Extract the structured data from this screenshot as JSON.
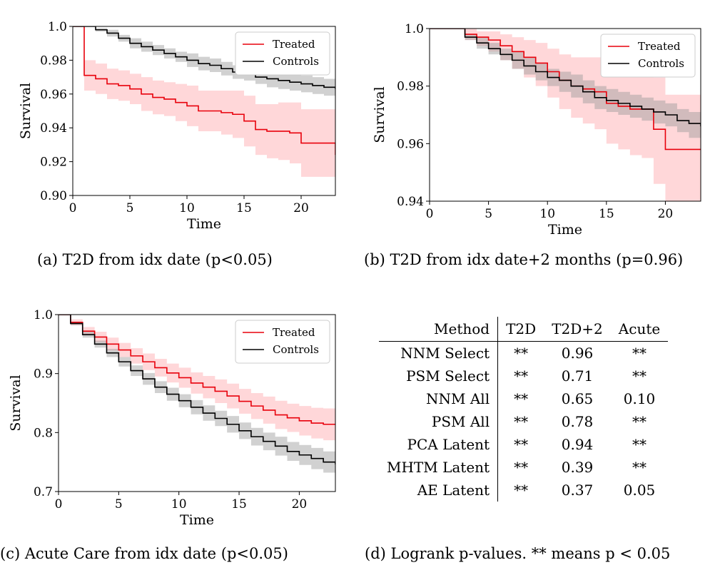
{
  "chart_data": [
    {
      "type": "line",
      "id": "a",
      "xlabel": "Time",
      "ylabel": "Survival",
      "xlim": [
        0,
        23
      ],
      "ylim": [
        0.9,
        1.0
      ],
      "xticks": [
        0,
        5,
        10,
        15,
        20
      ],
      "yticks": [
        0.9,
        0.92,
        0.94,
        0.96,
        0.98,
        1.0
      ],
      "ytick_labels": [
        "0.90",
        "0.92",
        "0.94",
        "0.96",
        "0.98",
        "1.0"
      ],
      "legend": "top-right",
      "caption": "(a) T2D from idx date (p<0.05)",
      "series": [
        {
          "name": "Treated",
          "color": "#e8000b",
          "x": [
            0,
            1,
            2,
            3,
            4,
            5,
            6,
            7,
            8,
            9,
            10,
            11,
            12,
            13,
            14,
            15,
            16,
            17,
            18,
            19,
            20,
            23
          ],
          "y": [
            1.0,
            0.971,
            0.969,
            0.966,
            0.965,
            0.963,
            0.96,
            0.958,
            0.957,
            0.955,
            0.953,
            0.95,
            0.95,
            0.949,
            0.948,
            0.944,
            0.939,
            0.938,
            0.938,
            0.937,
            0.931,
            0.924
          ],
          "lower": [
            1.0,
            0.962,
            0.96,
            0.957,
            0.956,
            0.954,
            0.95,
            0.948,
            0.947,
            0.944,
            0.941,
            0.938,
            0.938,
            0.936,
            0.934,
            0.929,
            0.924,
            0.922,
            0.921,
            0.919,
            0.911,
            0.906
          ],
          "upper": [
            1.0,
            0.98,
            0.978,
            0.975,
            0.974,
            0.972,
            0.97,
            0.968,
            0.967,
            0.966,
            0.965,
            0.962,
            0.962,
            0.962,
            0.962,
            0.959,
            0.954,
            0.954,
            0.955,
            0.955,
            0.951,
            0.941
          ]
        },
        {
          "name": "Controls",
          "color": "#000000",
          "x": [
            0,
            1,
            2,
            3,
            4,
            5,
            6,
            7,
            8,
            9,
            10,
            11,
            12,
            13,
            14,
            15,
            16,
            17,
            18,
            19,
            20,
            21,
            22,
            23
          ],
          "y": [
            1.0,
            1.0,
            0.998,
            0.996,
            0.993,
            0.99,
            0.988,
            0.986,
            0.984,
            0.982,
            0.98,
            0.978,
            0.977,
            0.975,
            0.973,
            0.972,
            0.97,
            0.969,
            0.968,
            0.967,
            0.966,
            0.965,
            0.964,
            0.963
          ],
          "lower": [
            1.0,
            1.0,
            0.997,
            0.994,
            0.991,
            0.987,
            0.985,
            0.983,
            0.981,
            0.979,
            0.976,
            0.974,
            0.973,
            0.971,
            0.969,
            0.968,
            0.966,
            0.964,
            0.963,
            0.962,
            0.961,
            0.96,
            0.959,
            0.957
          ],
          "upper": [
            1.0,
            1.0,
            0.999,
            0.998,
            0.995,
            0.993,
            0.991,
            0.989,
            0.987,
            0.985,
            0.984,
            0.982,
            0.981,
            0.979,
            0.977,
            0.976,
            0.974,
            0.974,
            0.973,
            0.972,
            0.971,
            0.97,
            0.969,
            0.969
          ]
        }
      ]
    },
    {
      "type": "line",
      "id": "b",
      "xlabel": "Time",
      "ylabel": "Survival",
      "xlim": [
        0,
        23
      ],
      "ylim": [
        0.94,
        1.0
      ],
      "xticks": [
        0,
        5,
        10,
        15,
        20
      ],
      "yticks": [
        0.94,
        0.96,
        0.98,
        1.0
      ],
      "ytick_labels": [
        "0.94",
        "0.96",
        "0.98",
        "1.0"
      ],
      "legend": "top-right",
      "caption": "(b) T2D from idx date+2 months (p=0.96)",
      "series": [
        {
          "name": "Treated",
          "color": "#e8000b",
          "x": [
            0,
            2,
            3,
            4,
            5,
            6,
            7,
            8,
            9,
            10,
            11,
            12,
            13,
            14,
            15,
            16,
            17,
            18,
            19,
            20,
            23
          ],
          "y": [
            1.0,
            1.0,
            0.998,
            0.997,
            0.996,
            0.994,
            0.992,
            0.99,
            0.988,
            0.985,
            0.982,
            0.98,
            0.979,
            0.978,
            0.974,
            0.973,
            0.972,
            0.972,
            0.965,
            0.958,
            0.958
          ],
          "lower": [
            1.0,
            1.0,
            0.996,
            0.994,
            0.992,
            0.989,
            0.986,
            0.983,
            0.98,
            0.976,
            0.972,
            0.969,
            0.967,
            0.965,
            0.96,
            0.958,
            0.956,
            0.955,
            0.946,
            0.94,
            0.94
          ],
          "upper": [
            1.0,
            1.0,
            1.0,
            0.999,
            0.999,
            0.998,
            0.997,
            0.996,
            0.995,
            0.993,
            0.991,
            0.99,
            0.99,
            0.99,
            0.988,
            0.987,
            0.987,
            0.987,
            0.983,
            0.977,
            0.977
          ]
        },
        {
          "name": "Controls",
          "color": "#000000",
          "x": [
            0,
            2,
            3,
            4,
            5,
            6,
            7,
            8,
            9,
            10,
            11,
            12,
            13,
            14,
            15,
            16,
            17,
            18,
            19,
            20,
            21,
            22,
            23
          ],
          "y": [
            1.0,
            1.0,
            0.997,
            0.995,
            0.993,
            0.991,
            0.989,
            0.987,
            0.985,
            0.983,
            0.982,
            0.98,
            0.978,
            0.976,
            0.975,
            0.974,
            0.973,
            0.972,
            0.971,
            0.97,
            0.968,
            0.967,
            0.966
          ],
          "lower": [
            1.0,
            1.0,
            0.996,
            0.993,
            0.991,
            0.989,
            0.986,
            0.984,
            0.982,
            0.98,
            0.978,
            0.976,
            0.974,
            0.972,
            0.971,
            0.97,
            0.969,
            0.968,
            0.967,
            0.966,
            0.964,
            0.962,
            0.961
          ],
          "upper": [
            1.0,
            1.0,
            0.998,
            0.997,
            0.995,
            0.993,
            0.992,
            0.99,
            0.988,
            0.986,
            0.985,
            0.984,
            0.982,
            0.98,
            0.979,
            0.978,
            0.977,
            0.976,
            0.975,
            0.974,
            0.972,
            0.971,
            0.971
          ]
        }
      ]
    },
    {
      "type": "line",
      "id": "c",
      "xlabel": "Time",
      "ylabel": "Survival",
      "xlim": [
        0,
        23
      ],
      "ylim": [
        0.7,
        1.0
      ],
      "xticks": [
        0,
        5,
        10,
        15,
        20
      ],
      "yticks": [
        0.7,
        0.8,
        0.9,
        1.0
      ],
      "ytick_labels": [
        "0.7",
        "0.8",
        "0.9",
        "1.0"
      ],
      "legend": "top-right",
      "caption": "(c) Acute Care from idx date (p<0.05)",
      "series": [
        {
          "name": "Treated",
          "color": "#e8000b",
          "x": [
            0,
            1,
            2,
            3,
            4,
            5,
            6,
            7,
            8,
            9,
            10,
            11,
            12,
            13,
            14,
            15,
            16,
            17,
            18,
            19,
            20,
            21,
            22,
            23
          ],
          "y": [
            1.0,
            0.987,
            0.972,
            0.962,
            0.95,
            0.94,
            0.93,
            0.92,
            0.91,
            0.901,
            0.893,
            0.884,
            0.877,
            0.87,
            0.862,
            0.853,
            0.845,
            0.838,
            0.83,
            0.825,
            0.82,
            0.816,
            0.814,
            0.814
          ],
          "lower": [
            1.0,
            0.982,
            0.965,
            0.953,
            0.939,
            0.928,
            0.917,
            0.906,
            0.895,
            0.885,
            0.876,
            0.866,
            0.858,
            0.85,
            0.841,
            0.832,
            0.823,
            0.815,
            0.806,
            0.801,
            0.795,
            0.79,
            0.787,
            0.787
          ],
          "upper": [
            1.0,
            0.992,
            0.979,
            0.971,
            0.961,
            0.952,
            0.943,
            0.934,
            0.925,
            0.917,
            0.91,
            0.902,
            0.896,
            0.89,
            0.883,
            0.874,
            0.867,
            0.861,
            0.854,
            0.849,
            0.845,
            0.842,
            0.841,
            0.841
          ]
        },
        {
          "name": "Controls",
          "color": "#000000",
          "x": [
            0,
            1,
            2,
            3,
            4,
            5,
            6,
            7,
            8,
            9,
            10,
            11,
            12,
            13,
            14,
            15,
            16,
            17,
            18,
            19,
            20,
            21,
            22,
            23
          ],
          "y": [
            1.0,
            0.985,
            0.966,
            0.95,
            0.935,
            0.92,
            0.905,
            0.891,
            0.877,
            0.865,
            0.854,
            0.843,
            0.833,
            0.824,
            0.814,
            0.803,
            0.793,
            0.785,
            0.777,
            0.768,
            0.762,
            0.756,
            0.75,
            0.746
          ],
          "lower": [
            1.0,
            0.982,
            0.961,
            0.944,
            0.928,
            0.912,
            0.896,
            0.881,
            0.867,
            0.854,
            0.843,
            0.831,
            0.82,
            0.811,
            0.8,
            0.789,
            0.778,
            0.77,
            0.761,
            0.752,
            0.745,
            0.738,
            0.732,
            0.727
          ],
          "upper": [
            1.0,
            0.988,
            0.971,
            0.956,
            0.942,
            0.928,
            0.914,
            0.901,
            0.887,
            0.876,
            0.865,
            0.855,
            0.846,
            0.837,
            0.828,
            0.817,
            0.808,
            0.8,
            0.793,
            0.784,
            0.779,
            0.774,
            0.768,
            0.765
          ]
        }
      ]
    },
    {
      "type": "table",
      "id": "d",
      "caption": "(d) Logrank p-values. ** means p < 0.05",
      "columns": [
        "Method",
        "T2D",
        "T2D+2",
        "Acute"
      ],
      "rows": [
        [
          "NNM Select",
          "**",
          "0.96",
          "**"
        ],
        [
          "PSM Select",
          "**",
          "0.71",
          "**"
        ],
        [
          "NNM All",
          "**",
          "0.65",
          "0.10"
        ],
        [
          "PSM All",
          "**",
          "0.78",
          "**"
        ],
        [
          "PCA Latent",
          "**",
          "0.94",
          "**"
        ],
        [
          "MHTM Latent",
          "**",
          "0.39",
          "**"
        ],
        [
          "AE Latent",
          "**",
          "0.37",
          "0.05"
        ]
      ]
    }
  ]
}
